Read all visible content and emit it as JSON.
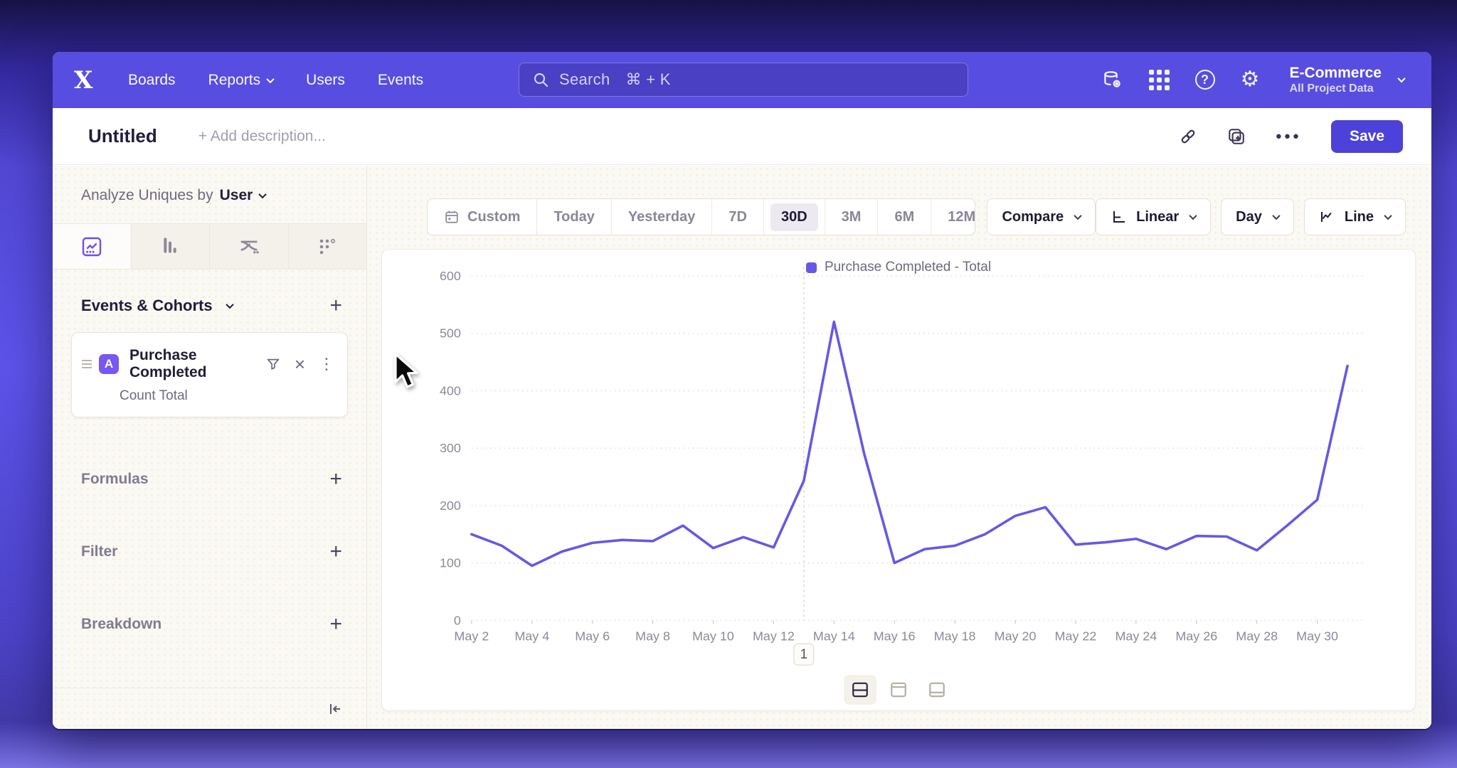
{
  "nav": {
    "items": [
      "Boards",
      "Reports",
      "Users",
      "Events"
    ],
    "search": {
      "label": "Search",
      "shortcut": "⌘ + K"
    },
    "project": {
      "name": "E-Commerce",
      "subtitle": "All Project Data"
    }
  },
  "title_row": {
    "title": "Untitled",
    "add_description": "+ Add description...",
    "save_label": "Save"
  },
  "sidebar": {
    "analyze_label": "Analyze Uniques by",
    "analyze_value": "User",
    "events_header": "Events & Cohorts",
    "event_card": {
      "badge": "A",
      "title": "Purchase Completed",
      "subtitle": "Count Total"
    },
    "sections": [
      {
        "label": "Formulas"
      },
      {
        "label": "Filter"
      },
      {
        "label": "Breakdown"
      }
    ]
  },
  "controls": {
    "date_ranges": [
      "Custom",
      "Today",
      "Yesterday",
      "7D",
      "30D",
      "3M",
      "6M",
      "12M"
    ],
    "selected_range": "30D",
    "compare_label": "Compare",
    "scale_label": "Linear",
    "interval_label": "Day",
    "chart_type_label": "Line"
  },
  "chart_data": {
    "type": "line",
    "title": "",
    "legend": [
      "Purchase Completed - Total"
    ],
    "legend_position": "top-center",
    "grid": "horizontal-dotted",
    "ylim": [
      0,
      600
    ],
    "yticks": [
      0,
      100,
      200,
      300,
      400,
      500,
      600
    ],
    "x_tick_step": 2,
    "x": [
      "May 2",
      "May 3",
      "May 4",
      "May 5",
      "May 6",
      "May 7",
      "May 8",
      "May 9",
      "May 10",
      "May 11",
      "May 12",
      "May 13",
      "May 14",
      "May 15",
      "May 16",
      "May 17",
      "May 18",
      "May 19",
      "May 20",
      "May 21",
      "May 22",
      "May 23",
      "May 24",
      "May 25",
      "May 26",
      "May 27",
      "May 28",
      "May 29",
      "May 30",
      "May 31"
    ],
    "series": [
      {
        "name": "Purchase Completed - Total",
        "color": "#6559e2",
        "values": [
          150,
          130,
          95,
          120,
          135,
          140,
          138,
          165,
          126,
          145,
          127,
          243,
          520,
          290,
          100,
          124,
          130,
          150,
          182,
          197,
          132,
          136,
          142,
          124,
          147,
          146,
          122,
          165,
          210,
          443
        ]
      }
    ],
    "annotations": [
      {
        "label": "1",
        "x": "May 13",
        "x_index": 11
      }
    ]
  },
  "footer": {
    "layout_options": [
      "split-horizontal",
      "panel-top",
      "panel-bottom"
    ],
    "active_option": "split-horizontal"
  }
}
